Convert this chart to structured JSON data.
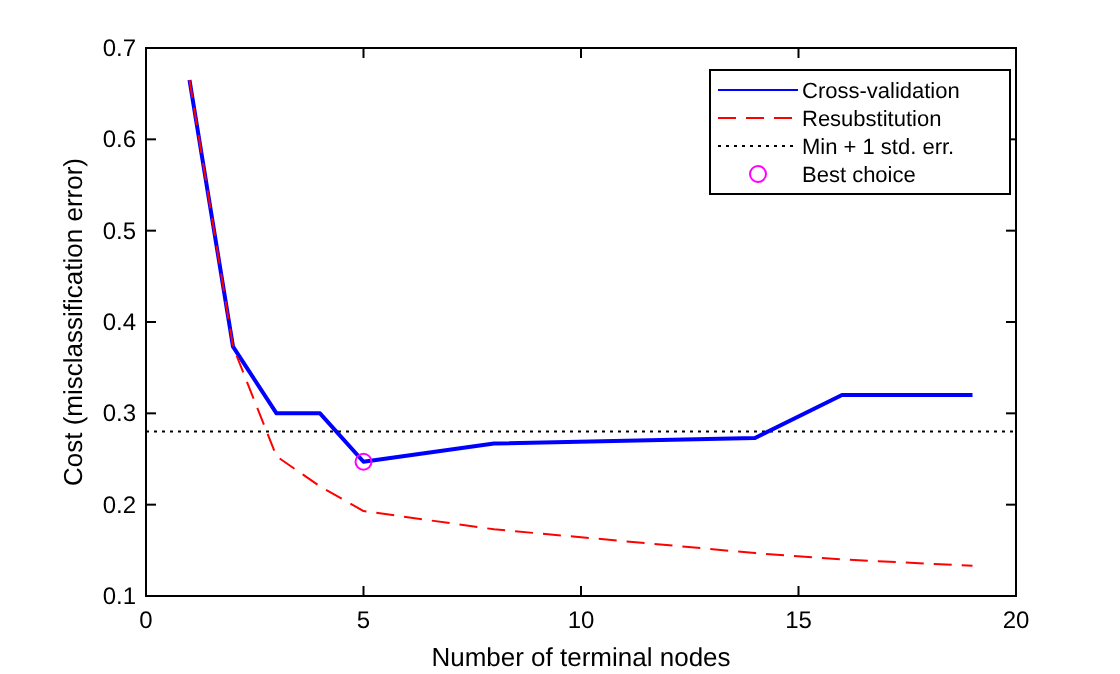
{
  "chart_data": {
    "type": "line",
    "xlabel": "Number of terminal nodes",
    "ylabel": "Cost (misclassification error)",
    "xlim": [
      0,
      20
    ],
    "xticks": [
      0,
      5,
      10,
      15,
      20
    ],
    "ylim": [
      0.1,
      0.7
    ],
    "yticks": [
      0.1,
      0.2,
      0.3,
      0.4,
      0.5,
      0.6,
      0.7
    ],
    "grid": false,
    "legend": "top right",
    "series": [
      {
        "name": "Cross-validation",
        "color": "#0000ff",
        "line_style": "solid",
        "x": [
          1,
          2,
          3,
          4,
          5,
          8,
          14,
          16,
          19
        ],
        "values": [
          0.665,
          0.373,
          0.3,
          0.3,
          0.247,
          0.267,
          0.273,
          0.32,
          0.32
        ]
      },
      {
        "name": "Resubstitution",
        "color": "#ff0000",
        "line_style": "dashed",
        "x": [
          1,
          2,
          3,
          4,
          5,
          8,
          14,
          16,
          19
        ],
        "values": [
          0.665,
          0.373,
          0.253,
          0.22,
          0.193,
          0.173,
          0.147,
          0.14,
          0.133
        ]
      },
      {
        "name": "Best choice",
        "type": "scatter",
        "color": "#ff00ff",
        "marker": "circle",
        "x": [
          5
        ],
        "values": [
          0.247
        ]
      }
    ],
    "ref_lines": [
      {
        "axis": "y",
        "value": 0.28,
        "label": "Min + 1 std. err.",
        "color": "#000000",
        "line_style": "dotted"
      }
    ]
  }
}
